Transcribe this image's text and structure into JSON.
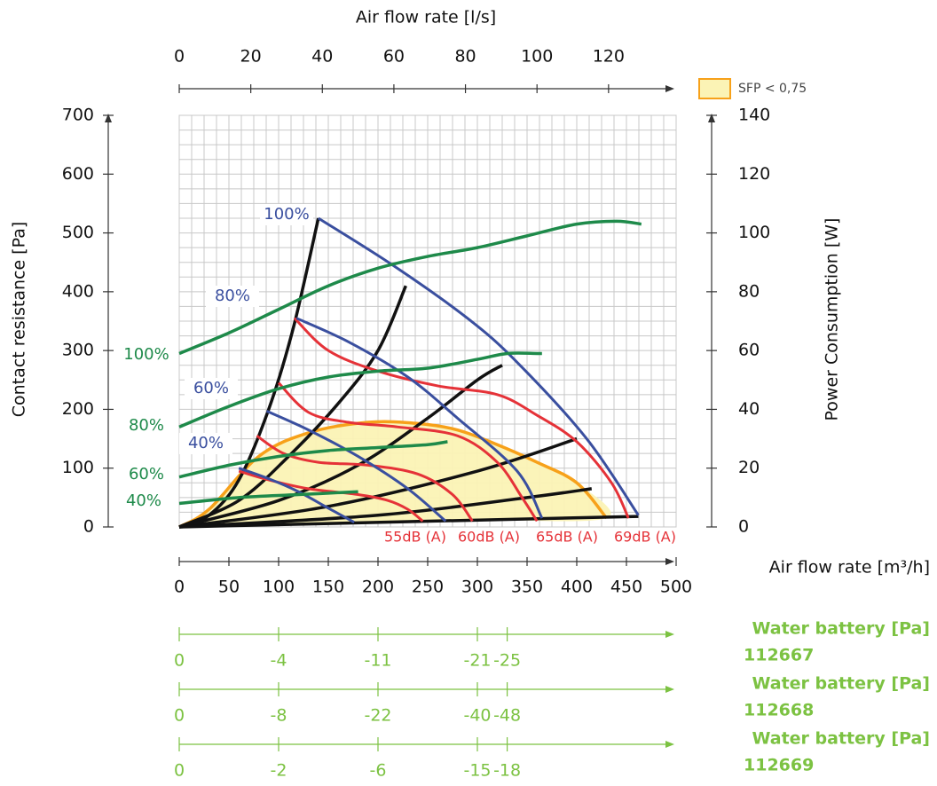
{
  "colors": {
    "fan_curve": "#3a4f9f",
    "power": "#1e8a4a",
    "noise": "#e53238",
    "system": "#111111",
    "sfp_fill": "#fbf3b5",
    "sfp_edge": "#f7a11a",
    "battery": "#7cc242",
    "grid": "#c8c8c8",
    "axis": "#333333"
  },
  "chart_data": {
    "type": "line",
    "title": "",
    "grid": true,
    "legend": {
      "position": "top-right",
      "entries": [
        {
          "label": "SFP < 0,75",
          "kind": "area"
        }
      ]
    },
    "x_axis_bottom": {
      "label": "Air flow rate [m³/h]",
      "range": [
        0,
        500
      ],
      "ticks": [
        "0",
        "50",
        "100",
        "150",
        "200",
        "250",
        "300",
        "350",
        "400",
        "450",
        "500"
      ]
    },
    "x_axis_top": {
      "label": "Air flow rate [l/s]",
      "ticks": [
        {
          "label": "0",
          "m3h": 0
        },
        {
          "label": "20",
          "m3h": 72
        },
        {
          "label": "40",
          "m3h": 144
        },
        {
          "label": "60",
          "m3h": 216
        },
        {
          "label": "80",
          "m3h": 288
        },
        {
          "label": "100",
          "m3h": 360
        },
        {
          "label": "120",
          "m3h": 432
        }
      ]
    },
    "y_axis_left": {
      "label": "Contact resistance [Pa]",
      "range": [
        0,
        700
      ],
      "ticks": [
        "0",
        "100",
        "200",
        "300",
        "400",
        "500",
        "600",
        "700"
      ]
    },
    "y_axis_right": {
      "label": "Power Consumption [W]",
      "range": [
        0,
        140
      ],
      "ticks": [
        "0",
        "20",
        "40",
        "60",
        "80",
        "100",
        "120",
        "140"
      ]
    },
    "fan_curves": [
      {
        "name": "100%",
        "points": [
          [
            140,
            525
          ],
          [
            215,
            445
          ],
          [
            290,
            355
          ],
          [
            340,
            280
          ],
          [
            410,
            150
          ],
          [
            462,
            20
          ]
        ]
      },
      {
        "name": "80%",
        "points": [
          [
            118,
            355
          ],
          [
            170,
            315
          ],
          [
            230,
            255
          ],
          [
            280,
            185
          ],
          [
            340,
            95
          ],
          [
            365,
            15
          ]
        ]
      },
      {
        "name": "60%",
        "points": [
          [
            88,
            197
          ],
          [
            130,
            165
          ],
          [
            180,
            120
          ],
          [
            230,
            65
          ],
          [
            268,
            10
          ]
        ]
      },
      {
        "name": "40%",
        "points": [
          [
            60,
            100
          ],
          [
            90,
            82
          ],
          [
            120,
            60
          ],
          [
            150,
            32
          ],
          [
            176,
            8
          ]
        ]
      }
    ],
    "power_curves": [
      {
        "name": "100%",
        "points": [
          [
            0,
            59
          ],
          [
            50,
            66
          ],
          [
            100,
            74
          ],
          [
            150,
            82
          ],
          [
            200,
            88
          ],
          [
            250,
            92
          ],
          [
            300,
            95
          ],
          [
            350,
            99
          ],
          [
            400,
            103
          ],
          [
            440,
            104
          ],
          [
            465,
            103
          ]
        ]
      },
      {
        "name": "80%",
        "points": [
          [
            0,
            34
          ],
          [
            50,
            41
          ],
          [
            100,
            47
          ],
          [
            150,
            51
          ],
          [
            200,
            53
          ],
          [
            250,
            54
          ],
          [
            300,
            57
          ],
          [
            330,
            59
          ],
          [
            360,
            59
          ],
          [
            365,
            59
          ]
        ]
      },
      {
        "name": "60%",
        "points": [
          [
            0,
            17
          ],
          [
            50,
            21
          ],
          [
            100,
            24
          ],
          [
            150,
            26
          ],
          [
            200,
            27
          ],
          [
            250,
            28
          ],
          [
            270,
            29
          ]
        ]
      },
      {
        "name": "40%",
        "points": [
          [
            0,
            8
          ],
          [
            60,
            10
          ],
          [
            120,
            11
          ],
          [
            180,
            12
          ]
        ]
      }
    ],
    "noise_curves": [
      {
        "name": "55dB (A)",
        "points": [
          [
            60,
            95
          ],
          [
            90,
            80
          ],
          [
            130,
            65
          ],
          [
            180,
            55
          ],
          [
            210,
            45
          ],
          [
            230,
            30
          ],
          [
            245,
            10
          ]
        ]
      },
      {
        "name": "60dB (A)",
        "points": [
          [
            78,
            155
          ],
          [
            105,
            125
          ],
          [
            140,
            110
          ],
          [
            190,
            105
          ],
          [
            240,
            90
          ],
          [
            275,
            55
          ],
          [
            295,
            10
          ]
        ]
      },
      {
        "name": "65dB (A)",
        "points": [
          [
            100,
            245
          ],
          [
            130,
            195
          ],
          [
            170,
            178
          ],
          [
            220,
            170
          ],
          [
            280,
            155
          ],
          [
            320,
            110
          ],
          [
            345,
            50
          ],
          [
            360,
            10
          ]
        ]
      },
      {
        "name": "69dB (A)",
        "points": [
          [
            116,
            355
          ],
          [
            150,
            300
          ],
          [
            200,
            265
          ],
          [
            260,
            240
          ],
          [
            320,
            225
          ],
          [
            360,
            190
          ],
          [
            400,
            145
          ],
          [
            435,
            75
          ],
          [
            452,
            15
          ]
        ]
      }
    ],
    "system_curves": [
      {
        "points": [
          [
            0,
            0
          ],
          [
            30,
            20
          ],
          [
            60,
            80
          ],
          [
            90,
            200
          ],
          [
            115,
            340
          ],
          [
            140,
            525
          ]
        ]
      },
      {
        "points": [
          [
            0,
            0
          ],
          [
            60,
            45
          ],
          [
            110,
            120
          ],
          [
            160,
            210
          ],
          [
            200,
            300
          ],
          [
            228,
            410
          ]
        ]
      },
      {
        "points": [
          [
            0,
            0
          ],
          [
            100,
            45
          ],
          [
            180,
            105
          ],
          [
            250,
            185
          ],
          [
            300,
            250
          ],
          [
            325,
            275
          ]
        ]
      },
      {
        "points": [
          [
            0,
            0
          ],
          [
            150,
            35
          ],
          [
            300,
            95
          ],
          [
            400,
            150
          ]
        ]
      },
      {
        "points": [
          [
            0,
            0
          ],
          [
            200,
            20
          ],
          [
            350,
            50
          ],
          [
            415,
            65
          ]
        ]
      },
      {
        "points": [
          [
            0,
            0
          ],
          [
            462,
            18
          ]
        ]
      }
    ],
    "sfp_region": {
      "label": "SFP < 0,75",
      "points": [
        [
          0,
          0
        ],
        [
          30,
          30
        ],
        [
          80,
          120
        ],
        [
          130,
          160
        ],
        [
          190,
          178
        ],
        [
          240,
          176
        ],
        [
          280,
          165
        ],
        [
          320,
          140
        ],
        [
          360,
          110
        ],
        [
          400,
          75
        ],
        [
          430,
          15
        ],
        [
          300,
          12
        ],
        [
          200,
          8
        ],
        [
          100,
          4
        ]
      ]
    },
    "point_labels": {
      "fan_curves": [
        "100%",
        "80%",
        "60%",
        "40%"
      ],
      "power_curves": [
        "100%",
        "80%",
        "60%",
        "40%"
      ],
      "noise_curves": [
        "55dB (A)",
        "60dB (A)",
        "65dB (A)",
        "69dB (A)"
      ]
    },
    "water_batteries": [
      {
        "title": "Water battery [Pa]",
        "code": "112667",
        "ticks": [
          {
            "label": "0",
            "m3h": 0
          },
          {
            "label": "-4",
            "m3h": 100
          },
          {
            "label": "-11",
            "m3h": 200
          },
          {
            "label": "-21",
            "m3h": 300
          },
          {
            "label": "-25",
            "m3h": 330
          }
        ]
      },
      {
        "title": "Water battery [Pa]",
        "code": "112668",
        "ticks": [
          {
            "label": "0",
            "m3h": 0
          },
          {
            "label": "-8",
            "m3h": 100
          },
          {
            "label": "-22",
            "m3h": 200
          },
          {
            "label": "-40",
            "m3h": 300
          },
          {
            "label": "-48",
            "m3h": 330
          }
        ]
      },
      {
        "title": "Water battery [Pa]",
        "code": "112669",
        "ticks": [
          {
            "label": "0",
            "m3h": 0
          },
          {
            "label": "-2",
            "m3h": 100
          },
          {
            "label": "-6",
            "m3h": 200
          },
          {
            "label": "-15",
            "m3h": 300
          },
          {
            "label": "-18",
            "m3h": 330
          }
        ]
      }
    ]
  }
}
